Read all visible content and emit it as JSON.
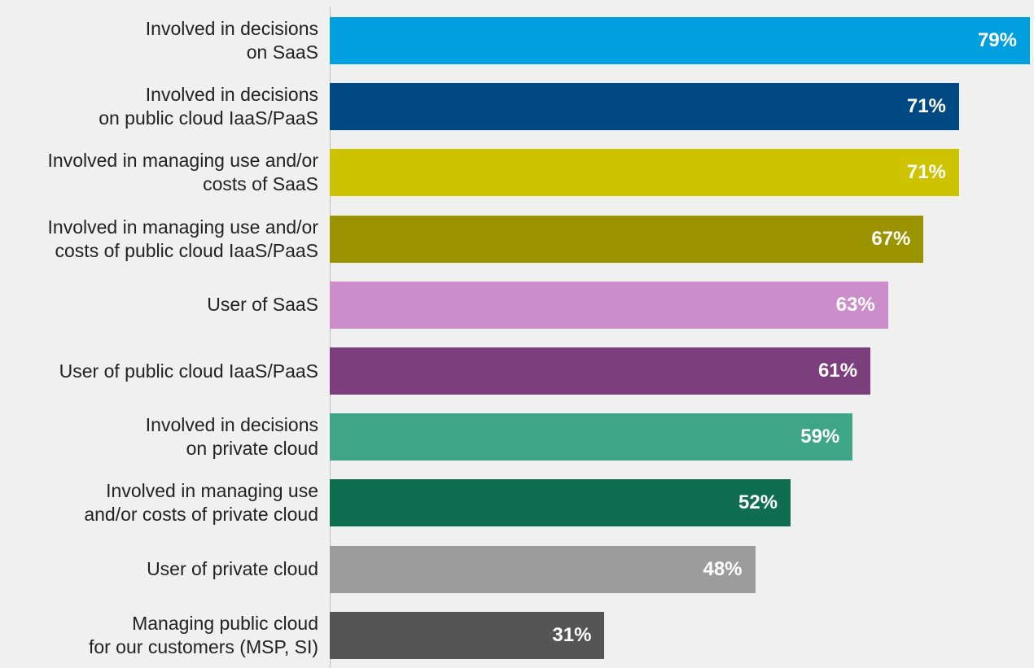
{
  "chart_data": {
    "type": "bar",
    "orientation": "horizontal",
    "categories": [
      "Involved in decisions\non SaaS",
      "Involved in decisions\non public cloud IaaS/PaaS",
      "Involved in managing use and/or\ncosts of SaaS",
      "Involved in managing use and/or\ncosts of public cloud IaaS/PaaS",
      "User of SaaS",
      "User of public cloud IaaS/PaaS",
      "Involved in decisions\non private cloud",
      "Involved in managing use\nand/or costs of private cloud",
      "User of private cloud",
      "Managing public cloud\nfor our customers (MSP, SI)"
    ],
    "values": [
      79,
      71,
      71,
      67,
      63,
      61,
      59,
      52,
      48,
      31
    ],
    "value_labels": [
      "79%",
      "71%",
      "71%",
      "67%",
      "63%",
      "61%",
      "59%",
      "52%",
      "48%",
      "31%"
    ],
    "colors": [
      "#009fe0",
      "#004983",
      "#cdc300",
      "#9b9400",
      "#cc8ecb",
      "#7d3e7d",
      "#3fa587",
      "#0e6e4f",
      "#9c9c9c",
      "#555555"
    ],
    "xlim": [
      0,
      79
    ],
    "title": "",
    "xlabel": "",
    "ylabel": "",
    "grid": false,
    "legend": "none"
  }
}
